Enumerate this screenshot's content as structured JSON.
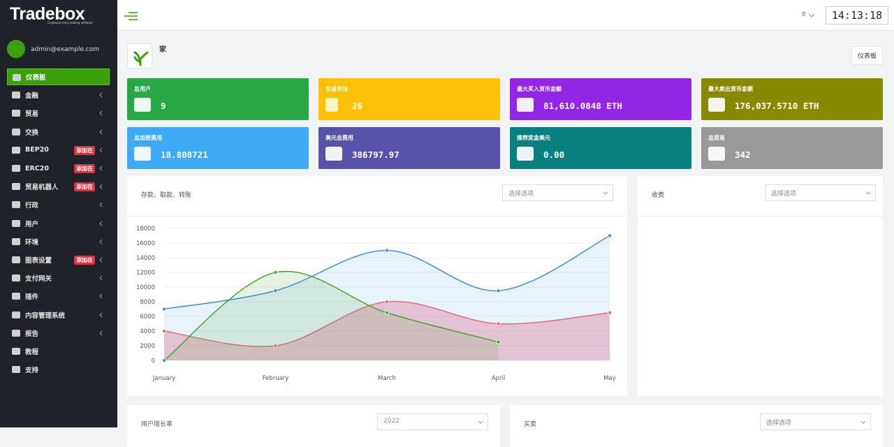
{
  "logo": {
    "brand": "Tradebox",
    "tagline": "Cryptocurrency trading software"
  },
  "user": {
    "email": "admin@example.com"
  },
  "menu": [
    {
      "label": "仪表板"
    },
    {
      "label": "金融"
    },
    {
      "label": "贸易"
    },
    {
      "label": "交换"
    },
    {
      "label": "BEP20",
      "badge": "添加在"
    },
    {
      "label": "ERC20",
      "badge": "添加在"
    },
    {
      "label": "贸易机器人",
      "badge": "添加在"
    },
    {
      "label": "行政"
    },
    {
      "label": "用户"
    },
    {
      "label": "环境"
    },
    {
      "label": "图表设置",
      "badge": "添加在"
    },
    {
      "label": "支付网关"
    },
    {
      "label": "插件"
    },
    {
      "label": "内容管理系统"
    },
    {
      "label": "报告"
    },
    {
      "label": "教程"
    },
    {
      "label": "支持"
    }
  ],
  "topbar": {
    "notifications": "8",
    "clock": "14:13:18"
  },
  "page": {
    "title": "家",
    "button": "仪表板"
  },
  "cards": [
    {
      "label": "总用户",
      "value": "9"
    },
    {
      "label": "交易市场",
      "value": "26"
    },
    {
      "label": "最大买入货币金额",
      "value": "81,610.0848 ETH"
    },
    {
      "label": "最大卖出货币金额",
      "value": "176,037.5710 ETH"
    },
    {
      "label": "总加密费用",
      "value": "18.808721"
    },
    {
      "label": "美元总费用",
      "value": "386797.97"
    },
    {
      "label": "推荐奖金美元",
      "value": "0.00"
    },
    {
      "label": "总贸易",
      "value": "342"
    }
  ],
  "panels": [
    {
      "title": "存款、取款、转账",
      "select": "选择选项"
    },
    {
      "title": "收费",
      "select": "选择选项"
    },
    {
      "title": "用户增长率",
      "select": "2022"
    },
    {
      "title": "买卖",
      "select": "选择选项"
    }
  ],
  "chart_data": {
    "type": "line",
    "categories": [
      "January",
      "February",
      "March",
      "April",
      "May"
    ],
    "series": [
      {
        "name": "deposit",
        "color": "#3a8ee0",
        "fill": "rgba(58,142,224,0.11)",
        "values": [
          7000,
          9500,
          15000,
          9500,
          17000
        ]
      },
      {
        "name": "withdraw",
        "color": "#e06a80",
        "fill": "rgba(214,90,125,0.32)",
        "values": [
          4000,
          2000,
          8000,
          5000,
          6500
        ]
      },
      {
        "name": "transfer",
        "color": "#43a52a",
        "fill": "rgba(70,160,60,0.14)",
        "values": [
          0,
          12000,
          6500,
          2500,
          null
        ]
      }
    ],
    "ylim": [
      0,
      18000
    ],
    "yticks": [
      0,
      2000,
      4000,
      6000,
      8000,
      10000,
      12000,
      14000,
      16000,
      18000
    ],
    "grid": true,
    "smooth": true
  }
}
